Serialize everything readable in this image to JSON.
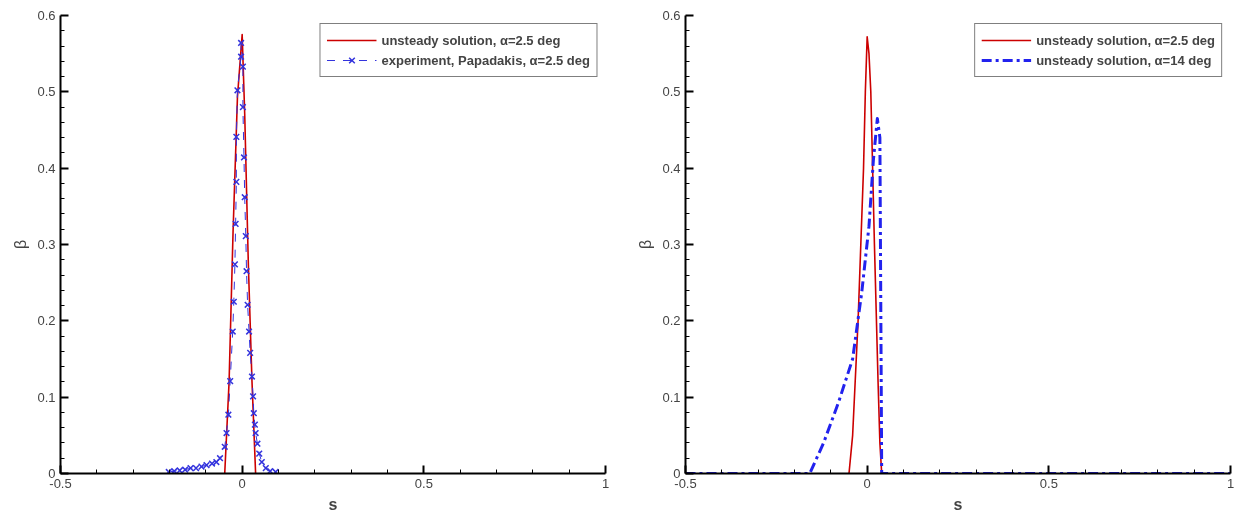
{
  "chart_data": [
    {
      "type": "line",
      "xlabel": "s",
      "ylabel": "β",
      "xlim": [
        -0.5,
        1
      ],
      "ylim": [
        0,
        0.6
      ],
      "xticks": [
        -0.5,
        0,
        0.5,
        1
      ],
      "yticks": [
        0,
        0.1,
        0.2,
        0.3,
        0.4,
        0.5,
        0.6
      ],
      "grid": false,
      "legend": "top right",
      "series": [
        {
          "name": "unsteady solution, α=2.5 deg",
          "color": "#cc0000",
          "line_style": "solid",
          "marker": "none",
          "x": [
            -0.048,
            -0.036,
            -0.025,
            -0.013,
            0,
            0.007,
            0.017,
            0.027,
            0.037
          ],
          "values": [
            0,
            0.12,
            0.318,
            0.493,
            0.575,
            0.471,
            0.274,
            0.121,
            0
          ]
        },
        {
          "name": "experiment, Papadakis, α=2.5 deg",
          "color": "#3333dd",
          "line_style": "dashed",
          "marker": "cross",
          "x": [
            -0.202,
            -0.187,
            -0.172,
            -0.157,
            -0.142,
            -0.127,
            -0.112,
            -0.098,
            -0.083,
            -0.071,
            -0.061,
            -0.048,
            -0.043,
            -0.038,
            -0.033,
            -0.026,
            -0.023,
            -0.02,
            -0.018,
            -0.016,
            -0.016,
            -0.013,
            -0.003,
            -0.003,
            0.002,
            0.002,
            0.005,
            0.007,
            0.01,
            0.012,
            0.015,
            0.019,
            0.022,
            0.027,
            0.03,
            0.032,
            0.035,
            0.037,
            0.042,
            0.047,
            0.054,
            0.065,
            0.077,
            0.092
          ],
          "values": [
            0.002,
            0.003,
            0.004,
            0.005,
            0.007,
            0.007,
            0.009,
            0.011,
            0.013,
            0.015,
            0.02,
            0.035,
            0.053,
            0.077,
            0.121,
            0.186,
            0.225,
            0.274,
            0.327,
            0.382,
            0.441,
            0.502,
            0.546,
            0.564,
            0.533,
            0.48,
            0.414,
            0.362,
            0.311,
            0.265,
            0.221,
            0.186,
            0.158,
            0.127,
            0.101,
            0.079,
            0.064,
            0.053,
            0.039,
            0.026,
            0.015,
            0.007,
            0.003,
            0.002
          ]
        }
      ]
    },
    {
      "type": "line",
      "xlabel": "s",
      "ylabel": "β",
      "xlim": [
        -0.5,
        1
      ],
      "ylim": [
        0,
        0.6
      ],
      "xticks": [
        -0.5,
        0,
        0.5,
        1
      ],
      "yticks": [
        0,
        0.1,
        0.2,
        0.3,
        0.4,
        0.5,
        0.6
      ],
      "grid": false,
      "legend": "top right",
      "series": [
        {
          "name": "unsteady solution, α=2.5 deg",
          "color": "#cc0000",
          "line_style": "solid",
          "marker": "none",
          "x": [
            -0.05,
            -0.04,
            -0.025,
            -0.01,
            -0.005,
            0,
            0.005,
            0.01,
            0.02,
            0.03,
            0.035,
            0.04
          ],
          "values": [
            0,
            0.05,
            0.2,
            0.4,
            0.5,
            0.572,
            0.55,
            0.5,
            0.3,
            0.12,
            0.04,
            0
          ]
        },
        {
          "name": "unsteady solution, α=14 deg",
          "color": "#2222ee",
          "line_style": "dashdot",
          "marker": "none",
          "x": [
            -0.5,
            -0.158,
            -0.12,
            -0.079,
            -0.04,
            -0.015,
            0.005,
            0.017,
            0.028,
            0.035,
            0.04,
            1
          ],
          "values": [
            0,
            0,
            0.04,
            0.093,
            0.15,
            0.237,
            0.324,
            0.41,
            0.465,
            0.44,
            0,
            0
          ]
        }
      ]
    }
  ]
}
